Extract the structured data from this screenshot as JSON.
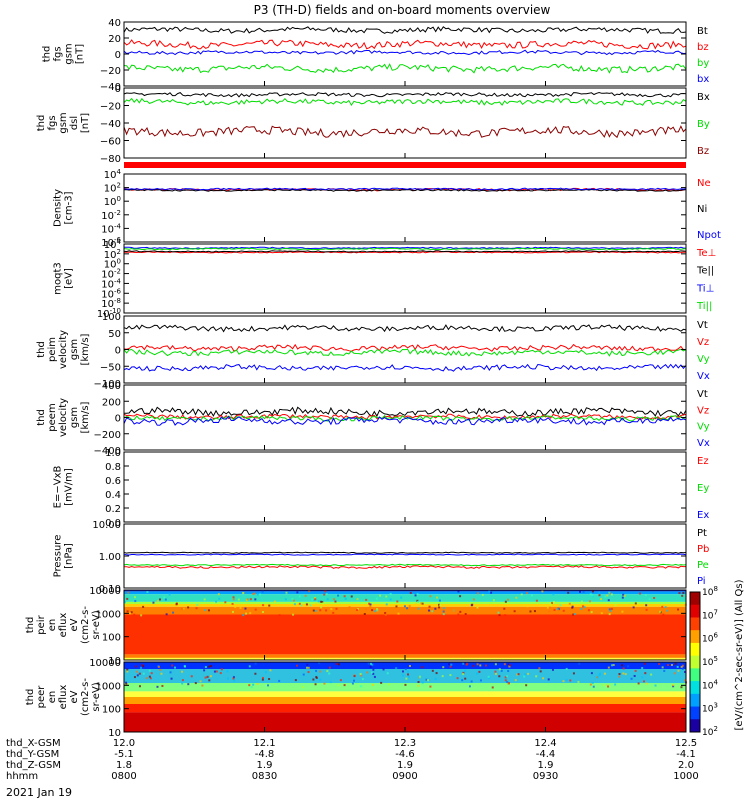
{
  "title": "P3 (TH-D) fields and on-board moments overview",
  "date_label": "2021 Jan 19",
  "orbit_rows": [
    {
      "name": "thd_X-GSM",
      "values": [
        "12.0",
        "12.1",
        "12.3",
        "12.4",
        "12.5"
      ]
    },
    {
      "name": "thd_Y-GSM",
      "values": [
        "-5.1",
        "-4.8",
        "-4.6",
        "-4.4",
        "-4.1"
      ]
    },
    {
      "name": "thd_Z-GSM",
      "values": [
        "1.8",
        "1.9",
        "1.9",
        "1.9",
        "2.0"
      ]
    },
    {
      "name": "hhmm",
      "values": [
        "0800",
        "0830",
        "0900",
        "0930",
        "1000"
      ]
    }
  ],
  "colorbar": {
    "label": "[eV/(cm^2-sec-sr-eV)] (All Qs)",
    "ticks": [
      "10^2",
      "10^3",
      "10^4",
      "10^5",
      "10^6",
      "10^7",
      "10^8"
    ]
  },
  "colors": {
    "black": "#000000",
    "red": "#ff0000",
    "green": "#00dd00",
    "blue": "#0000ff",
    "darkred": "#8b0000"
  },
  "chart_data": [
    {
      "id": "fgs_gsm",
      "type": "line",
      "ylabel": [
        "thd",
        "fgs",
        "gsm",
        "[nT]"
      ],
      "yticks": [
        "40",
        "20",
        "0",
        "−20",
        "−40"
      ],
      "ylim": [
        -40,
        40
      ],
      "series": [
        {
          "name": "Bt",
          "color": "#000000",
          "level": 30,
          "noise": 3
        },
        {
          "name": "bz",
          "color": "#ff0000",
          "level": 12,
          "noise": 4
        },
        {
          "name": "by",
          "color": "#00dd00",
          "level": -18,
          "noise": 4
        },
        {
          "name": "bx",
          "color": "#0000ff",
          "level": 2,
          "noise": 2
        }
      ]
    },
    {
      "id": "fgs_dsl",
      "type": "line",
      "ylabel": [
        "thd",
        "fgs",
        "gsm",
        "dsl",
        "[nT]"
      ],
      "yticks": [
        "0",
        "−20",
        "−40",
        "−60",
        "−80"
      ],
      "ylim": [
        -80,
        5
      ],
      "series": [
        {
          "name": "Bx",
          "color": "#000000",
          "level": -3,
          "noise": 2
        },
        {
          "name": "By",
          "color": "#00dd00",
          "level": -12,
          "noise": 3
        },
        {
          "name": "Bz",
          "color": "#8b0000",
          "level": -48,
          "noise": 5
        }
      ]
    },
    {
      "id": "density",
      "type": "line",
      "ylabel": [
        "Density",
        "[cm-3]"
      ],
      "yticks": [
        "10^4",
        "10^2",
        "10^0",
        "10^-2",
        "10^-4",
        "10^-6"
      ],
      "ylim": [
        -6,
        4
      ],
      "series": [
        {
          "name": "Ne",
          "color": "#ff0000",
          "level": 1.7,
          "noise": 0.15
        },
        {
          "name": "Ni",
          "color": "#000000",
          "level": 1.6,
          "noise": 0.1
        },
        {
          "name": "Npot",
          "color": "#0000ff",
          "level": 1.8,
          "noise": 0.1
        }
      ]
    },
    {
      "id": "temperature",
      "type": "line",
      "ylabel": [
        "moqt3",
        "[eV]"
      ],
      "yticks": [
        "10^4",
        "10^2",
        "10^0",
        "10^-2",
        "10^-4",
        "10^-6",
        "10^-8",
        "10^-10"
      ],
      "ylim": [
        -10,
        4
      ],
      "series": [
        {
          "name": "Te⊥",
          "color": "#ff0000",
          "level": 2.3,
          "noise": 0.1
        },
        {
          "name": "Te||",
          "color": "#000000",
          "level": 2.5,
          "noise": 0.1
        },
        {
          "name": "Ti⊥",
          "color": "#0000ff",
          "level": 3.2,
          "noise": 0.1
        },
        {
          "name": "Ti||",
          "color": "#00dd00",
          "level": 3.0,
          "noise": 0.1
        }
      ]
    },
    {
      "id": "peim_velocity",
      "type": "line",
      "ylabel": [
        "thd",
        "peim",
        "velocity",
        "gsm",
        "[km/s]"
      ],
      "yticks": [
        "100",
        "50",
        "0",
        "−50",
        "−100"
      ],
      "ylim": [
        -110,
        110
      ],
      "series": [
        {
          "name": "Vt",
          "color": "#000000",
          "level": 70,
          "noise": 8
        },
        {
          "name": "Vz",
          "color": "#ff0000",
          "level": 5,
          "noise": 8
        },
        {
          "name": "Vy",
          "color": "#00dd00",
          "level": -10,
          "noise": 8
        },
        {
          "name": "Vx",
          "color": "#0000ff",
          "level": -60,
          "noise": 8
        }
      ]
    },
    {
      "id": "peem_velocity",
      "type": "line",
      "ylabel": [
        "thd",
        "peem",
        "velocity",
        "gsm",
        "[km/s]"
      ],
      "yticks": [
        "400",
        "200",
        "0",
        "−200",
        "−400"
      ],
      "ylim": [
        -400,
        400
      ],
      "series": [
        {
          "name": "Vt",
          "color": "#000000",
          "level": 70,
          "noise": 40
        },
        {
          "name": "Vz",
          "color": "#ff0000",
          "level": 10,
          "noise": 25
        },
        {
          "name": "Vy",
          "color": "#00dd00",
          "level": -10,
          "noise": 25
        },
        {
          "name": "Vx",
          "color": "#0000ff",
          "level": -40,
          "noise": 40
        }
      ]
    },
    {
      "id": "efield",
      "type": "line",
      "ylabel": [
        "E=−VxB",
        "[mV/m]"
      ],
      "yticks": [
        "1.0",
        "0.8",
        "0.6",
        "0.4",
        "0.2",
        "0.0"
      ],
      "ylim": [
        0,
        1
      ],
      "series": [
        {
          "name": "Ez",
          "color": "#ff0000"
        },
        {
          "name": "Ey",
          "color": "#00dd00"
        },
        {
          "name": "Ex",
          "color": "#0000ff"
        }
      ]
    },
    {
      "id": "pressure",
      "type": "line",
      "ylabel": [
        "Pressure",
        "[nPa]"
      ],
      "yticks": [
        "10.00",
        "1.00",
        "0.10"
      ],
      "ylim": [
        -1.3,
        1.15
      ],
      "log": true,
      "series": [
        {
          "name": "Pt",
          "color": "#000000",
          "level": 0.05,
          "noise": 0.015
        },
        {
          "name": "Pb",
          "color": "#ff0000",
          "level": -0.5,
          "noise": 0.04
        },
        {
          "name": "Pe",
          "color": "#00dd00",
          "level": -0.42,
          "noise": 0.02
        },
        {
          "name": "Pi",
          "color": "#0000ff",
          "level": -0.02,
          "noise": 0.015
        }
      ]
    },
    {
      "id": "peir_spec",
      "type": "heatmap",
      "ylabel": [
        "thd",
        "peir",
        "en",
        "eflux",
        "eV",
        "(cm2-s-",
        "sr-eV)"
      ],
      "yticks": [
        "10000",
        "1000",
        "100",
        "10"
      ]
    },
    {
      "id": "peer_spec",
      "type": "heatmap",
      "ylabel": [
        "thd",
        "peer",
        "en",
        "eflux",
        "eV",
        "(cm2-s-",
        "sr-eV)"
      ],
      "yticks": [
        "10000",
        "1000",
        "100",
        "10"
      ]
    }
  ]
}
